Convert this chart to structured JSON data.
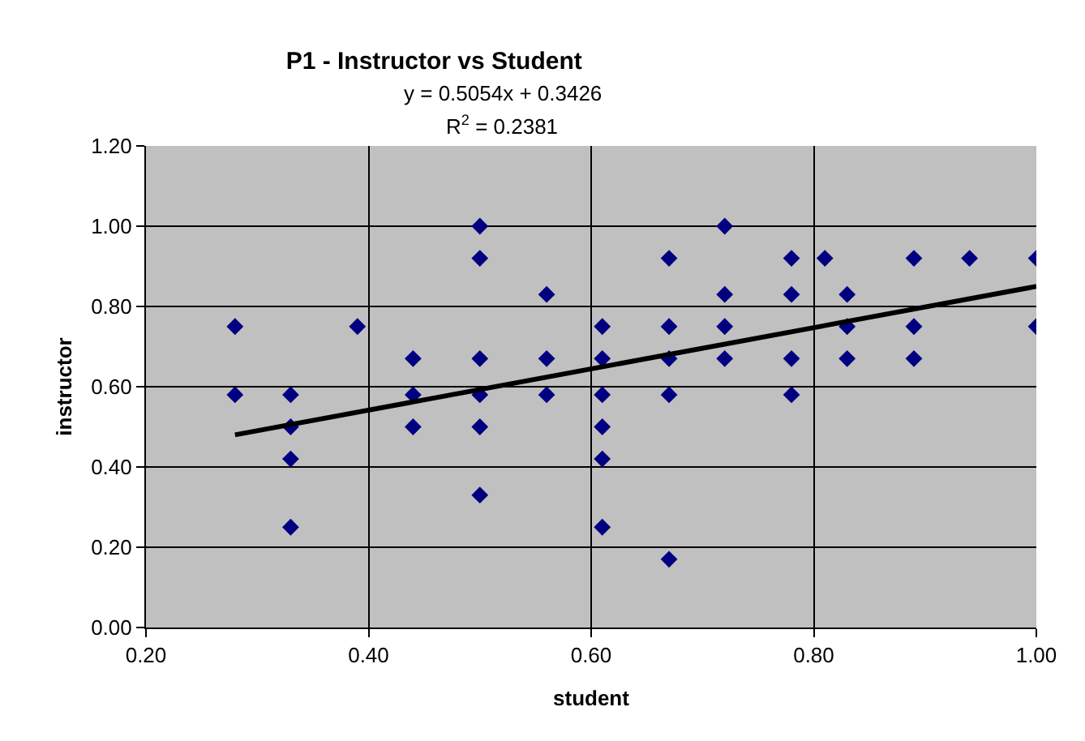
{
  "chart_data": {
    "type": "scatter",
    "title": "P1 - Instructor vs Student",
    "xlabel": "student",
    "ylabel": "instructor",
    "annotations": [
      "y = 0.5054x + 0.3426",
      "R$^{2}$ = 0.2381"
    ],
    "series": [
      {
        "color": "#000080",
        "marker": "diamond",
        "x": [
          0.28,
          0.28,
          0.33,
          0.33,
          0.33,
          0.33,
          0.39,
          0.44,
          0.44,
          0.44,
          0.5,
          0.5,
          0.5,
          0.5,
          0.5,
          0.5,
          0.56,
          0.56,
          0.56,
          0.61,
          0.61,
          0.61,
          0.61,
          0.61,
          0.61,
          0.67,
          0.67,
          0.67,
          0.67,
          0.67,
          0.72,
          0.72,
          0.72,
          0.72,
          0.78,
          0.78,
          0.78,
          0.78,
          0.81,
          0.83,
          0.83,
          0.83,
          0.89,
          0.89,
          0.89,
          0.94,
          1.0,
          1.0
        ],
        "values": [
          0.75,
          0.58,
          0.58,
          0.5,
          0.42,
          0.25,
          0.75,
          0.67,
          0.58,
          0.5,
          1.0,
          0.92,
          0.67,
          0.58,
          0.5,
          0.33,
          0.83,
          0.67,
          0.58,
          0.75,
          0.67,
          0.58,
          0.5,
          0.42,
          0.25,
          0.92,
          0.75,
          0.67,
          0.58,
          0.17,
          1.0,
          0.83,
          0.75,
          0.67,
          0.92,
          0.83,
          0.67,
          0.58,
          0.92,
          0.83,
          0.75,
          0.67,
          0.92,
          0.75,
          0.67,
          0.92,
          0.92,
          0.75
        ]
      },
      {
        "type": "line",
        "color": "#000000",
        "marker": "none",
        "line_style": "solid",
        "x": [
          0.28,
          1.0
        ],
        "values": [
          0.48,
          0.85
        ]
      }
    ],
    "xlim": [
      0.2,
      1.0
    ],
    "xticks": [
      {
        "value": 0.2,
        "label": "0.20"
      },
      {
        "value": 0.4,
        "label": "0.40"
      },
      {
        "value": 0.6,
        "label": "0.60"
      },
      {
        "value": 0.8,
        "label": "0.80"
      },
      {
        "value": 1.0,
        "label": "1.00"
      }
    ],
    "ylim": [
      0,
      1.2
    ],
    "yticks": [
      {
        "value": 0,
        "label": "0.00"
      },
      {
        "value": 0.2,
        "label": "0.20"
      },
      {
        "value": 0.4,
        "label": "0.40"
      },
      {
        "value": 0.6,
        "label": "0.60"
      },
      {
        "value": 0.8,
        "label": "0.80"
      },
      {
        "value": 1.0,
        "label": "1.00"
      },
      {
        "value": 1.2,
        "label": "1.20"
      }
    ],
    "grid": true
  }
}
